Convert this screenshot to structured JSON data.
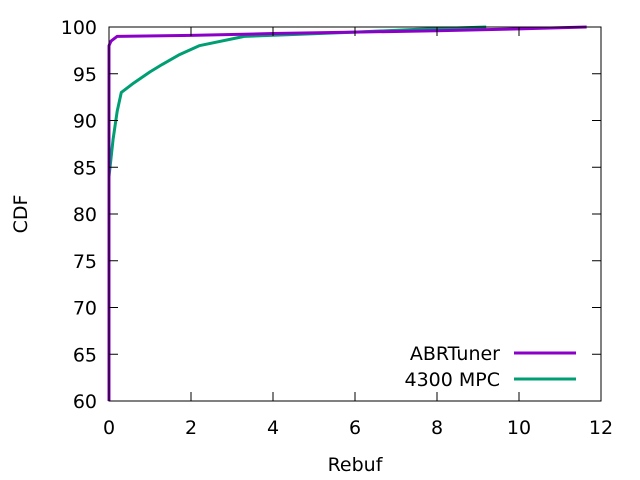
{
  "chart_data": {
    "type": "line",
    "xlabel": "Rebuf",
    "ylabel": "CDF",
    "xlim": [
      0,
      12
    ],
    "ylim": [
      60,
      100
    ],
    "xticks": [
      0,
      2,
      4,
      6,
      8,
      10,
      12
    ],
    "yticks": [
      60,
      65,
      70,
      75,
      80,
      85,
      90,
      95,
      100
    ],
    "grid": false,
    "legend_position": "bottom-right",
    "series": [
      {
        "name": "ABRTuner",
        "color": "#8b00c8",
        "x": [
          0,
          0,
          0,
          0.05,
          0.2,
          2,
          4,
          6,
          8,
          10,
          11.65
        ],
        "y": [
          60,
          90,
          98,
          98.5,
          99,
          99.1,
          99.3,
          99.45,
          99.6,
          99.8,
          100
        ]
      },
      {
        "name": "4300 MPC",
        "color": "#009e73",
        "x": [
          0,
          0,
          0.05,
          0.1,
          0.2,
          0.3,
          0.6,
          1.0,
          1.3,
          1.7,
          2.2,
          3.3,
          4.5,
          6.0,
          7.5,
          9.2
        ],
        "y": [
          60,
          84,
          86,
          88,
          91,
          93,
          94,
          95.2,
          96,
          97,
          98,
          99,
          99.2,
          99.45,
          99.75,
          100
        ]
      }
    ]
  }
}
